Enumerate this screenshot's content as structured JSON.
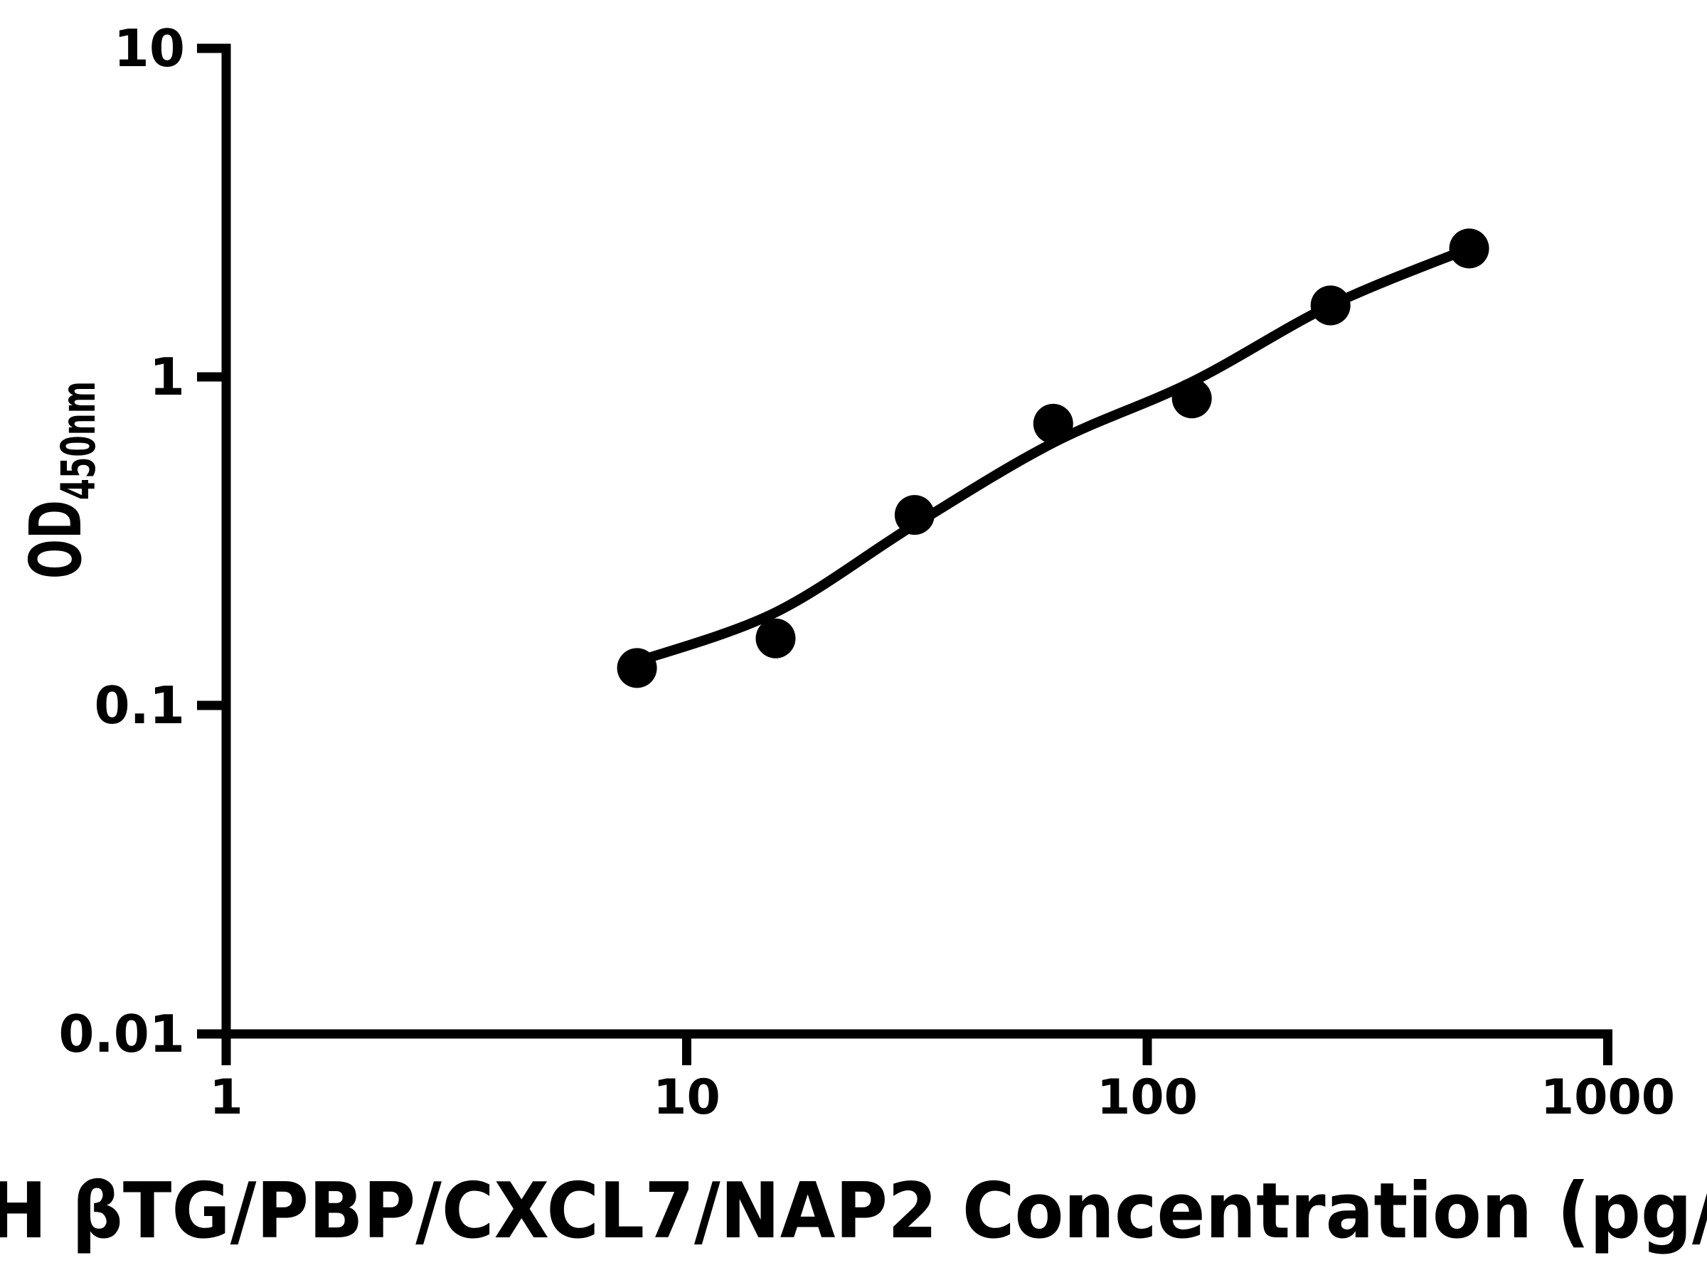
{
  "figure": {
    "background_color": "#ffffff",
    "ink_color": "#000000"
  },
  "chart_data": {
    "type": "scatter",
    "title": "",
    "xlabel_visible": "H βTG/PBP/CXCL7/NAP2 Concentration (pg/",
    "ylabel_main": "OD",
    "ylabel_subscript": "450nm",
    "x_scale": "log",
    "y_scale": "log",
    "xlim": [
      1,
      1000
    ],
    "ylim": [
      0.01,
      10
    ],
    "x_ticks": [
      1,
      10,
      100,
      1000
    ],
    "x_tick_labels": [
      "1",
      "10",
      "100",
      "1000"
    ],
    "y_ticks": [
      10,
      1,
      0.1,
      0.01
    ],
    "y_tick_labels": [
      "10",
      "1",
      "0.1",
      "0.01"
    ],
    "grid": false,
    "legend": "none",
    "marker": "filled-circle",
    "points": [
      {
        "x": 7.8,
        "y": 0.13
      },
      {
        "x": 15.6,
        "y": 0.16
      },
      {
        "x": 31.25,
        "y": 0.38
      },
      {
        "x": 62.5,
        "y": 0.72
      },
      {
        "x": 125,
        "y": 0.86
      },
      {
        "x": 250,
        "y": 1.65
      },
      {
        "x": 500,
        "y": 2.46
      }
    ],
    "fit_line": [
      {
        "x": 7.8,
        "y": 0.136
      },
      {
        "x": 15.6,
        "y": 0.192
      },
      {
        "x": 31.25,
        "y": 0.355
      },
      {
        "x": 62.5,
        "y": 0.63
      },
      {
        "x": 125,
        "y": 0.965
      },
      {
        "x": 250,
        "y": 1.65
      },
      {
        "x": 500,
        "y": 2.46
      }
    ]
  }
}
